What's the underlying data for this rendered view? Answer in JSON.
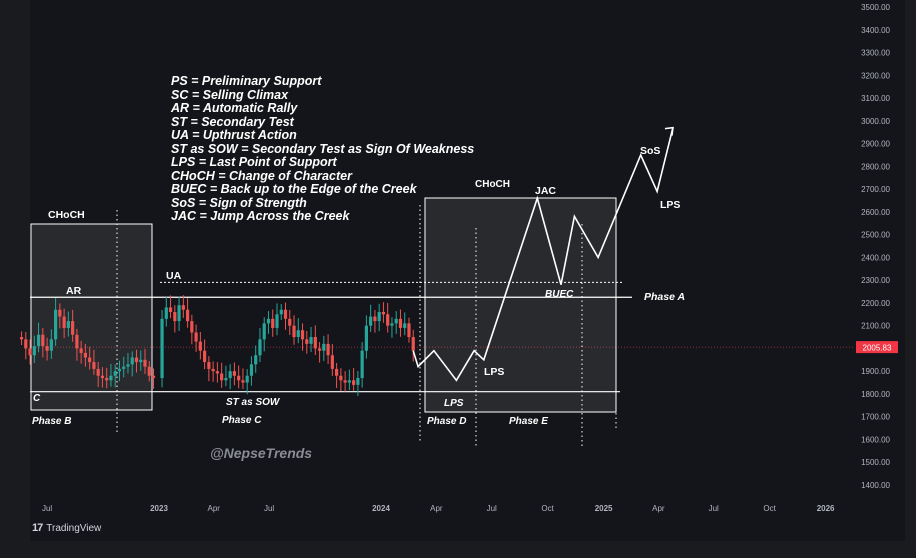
{
  "watermark": "@NepseTrends",
  "branding": "TradingView",
  "current_price_label": "2005.83",
  "legend": [
    "PS = Preliminary Support",
    "SC = Selling Climax",
    "AR = Automatic Rally",
    "ST = Secondary Test",
    "UA = Upthrust Action",
    "ST as SOW = Secondary Test as Sign Of Weakness",
    "LPS = Last Point of Support",
    "CHoCH = Change of Character",
    "BUEC = Back up to the Edge of the Creek",
    "SoS = Sign of Strength",
    "JAC = Jump Across the Creek"
  ],
  "chart_data": {
    "type": "candlestick",
    "title": "",
    "ylabel": "",
    "xlabel": "",
    "ylim": [
      1400,
      3500
    ],
    "y_ticks": [
      "3500.00",
      "3400.00",
      "3300.00",
      "3200.00",
      "3100.00",
      "3000.00",
      "2900.00",
      "2800.00",
      "2700.00",
      "2600.00",
      "2500.00",
      "2400.00",
      "2300.00",
      "2200.00",
      "2100.00",
      "2000.00",
      "1900.00",
      "1800.00",
      "1700.00",
      "1600.00",
      "1500.00",
      "1400.00"
    ],
    "x_ticks": [
      "Jul",
      "2023",
      "Apr",
      "Jul",
      "2024",
      "Apr",
      "Jul",
      "Oct",
      "2025",
      "Apr",
      "Jul",
      "Oct",
      "2026"
    ],
    "x_tick_dates": [
      "2022-07-01",
      "2023-01-01",
      "2023-04-01",
      "2023-07-01",
      "2024-01-01",
      "2024-04-01",
      "2024-07-01",
      "2024-10-01",
      "2025-01-01",
      "2025-04-01",
      "2025-07-01",
      "2025-10-01",
      "2026-01-01"
    ],
    "last_price": 2005.83,
    "creek_level": 2225,
    "resistance_dotted_level": 2290,
    "support_level": 1810,
    "candles": [
      {
        "x": "2022-05-20",
        "c": 2040
      },
      {
        "x": "2022-05-27",
        "c": 2000
      },
      {
        "x": "2022-06-03",
        "c": 1970
      },
      {
        "x": "2022-06-10",
        "c": 2010
      },
      {
        "x": "2022-06-17",
        "c": 2060
      },
      {
        "x": "2022-06-24",
        "c": 2010
      },
      {
        "x": "2022-07-01",
        "c": 1990
      },
      {
        "x": "2022-07-08",
        "c": 2040
      },
      {
        "x": "2022-07-15",
        "c": 2170
      },
      {
        "x": "2022-07-22",
        "c": 2140
      },
      {
        "x": "2022-07-29",
        "c": 2090
      },
      {
        "x": "2022-08-05",
        "c": 2120
      },
      {
        "x": "2022-08-12",
        "c": 2060
      },
      {
        "x": "2022-08-19",
        "c": 2000
      },
      {
        "x": "2022-08-26",
        "c": 1980
      },
      {
        "x": "2022-09-02",
        "c": 1960
      },
      {
        "x": "2022-09-09",
        "c": 1940
      },
      {
        "x": "2022-09-16",
        "c": 1910
      },
      {
        "x": "2022-09-23",
        "c": 1880
      },
      {
        "x": "2022-09-30",
        "c": 1870
      },
      {
        "x": "2022-10-07",
        "c": 1860
      },
      {
        "x": "2022-10-14",
        "c": 1880
      },
      {
        "x": "2022-10-21",
        "c": 1900
      },
      {
        "x": "2022-10-28",
        "c": 1910
      },
      {
        "x": "2022-11-04",
        "c": 1920
      },
      {
        "x": "2022-11-11",
        "c": 1930
      },
      {
        "x": "2022-11-18",
        "c": 1960
      },
      {
        "x": "2022-11-25",
        "c": 1940
      },
      {
        "x": "2022-12-02",
        "c": 1950
      },
      {
        "x": "2022-12-09",
        "c": 1920
      },
      {
        "x": "2022-12-16",
        "c": 1880
      },
      {
        "x": "2022-12-23",
        "c": 1870
      },
      {
        "x": "2023-01-06",
        "c": 2130
      },
      {
        "x": "2023-01-13",
        "c": 2180
      },
      {
        "x": "2023-01-20",
        "c": 2160
      },
      {
        "x": "2023-01-27",
        "c": 2120
      },
      {
        "x": "2023-02-03",
        "c": 2190
      },
      {
        "x": "2023-02-10",
        "c": 2170
      },
      {
        "x": "2023-02-17",
        "c": 2120
      },
      {
        "x": "2023-02-24",
        "c": 2070
      },
      {
        "x": "2023-03-03",
        "c": 2030
      },
      {
        "x": "2023-03-10",
        "c": 1990
      },
      {
        "x": "2023-03-17",
        "c": 1940
      },
      {
        "x": "2023-03-24",
        "c": 1910
      },
      {
        "x": "2023-03-31",
        "c": 1900
      },
      {
        "x": "2023-04-07",
        "c": 1890
      },
      {
        "x": "2023-04-14",
        "c": 1860
      },
      {
        "x": "2023-04-21",
        "c": 1870
      },
      {
        "x": "2023-04-28",
        "c": 1900
      },
      {
        "x": "2023-05-05",
        "c": 1880
      },
      {
        "x": "2023-05-12",
        "c": 1860
      },
      {
        "x": "2023-05-19",
        "c": 1850
      },
      {
        "x": "2023-05-26",
        "c": 1880
      },
      {
        "x": "2023-06-02",
        "c": 1930
      },
      {
        "x": "2023-06-09",
        "c": 1970
      },
      {
        "x": "2023-06-16",
        "c": 2040
      },
      {
        "x": "2023-06-23",
        "c": 2110
      },
      {
        "x": "2023-06-30",
        "c": 2130
      },
      {
        "x": "2023-07-07",
        "c": 2090
      },
      {
        "x": "2023-07-14",
        "c": 2150
      },
      {
        "x": "2023-07-21",
        "c": 2170
      },
      {
        "x": "2023-07-28",
        "c": 2130
      },
      {
        "x": "2023-08-04",
        "c": 2100
      },
      {
        "x": "2023-08-11",
        "c": 2050
      },
      {
        "x": "2023-08-18",
        "c": 2080
      },
      {
        "x": "2023-08-25",
        "c": 2040
      },
      {
        "x": "2023-09-01",
        "c": 2020
      },
      {
        "x": "2023-09-08",
        "c": 2050
      },
      {
        "x": "2023-09-15",
        "c": 2000
      },
      {
        "x": "2023-09-22",
        "c": 1990
      },
      {
        "x": "2023-09-29",
        "c": 2020
      },
      {
        "x": "2023-10-06",
        "c": 1970
      },
      {
        "x": "2023-10-13",
        "c": 1910
      },
      {
        "x": "2023-10-20",
        "c": 1880
      },
      {
        "x": "2023-10-27",
        "c": 1860
      },
      {
        "x": "2023-11-03",
        "c": 1850
      },
      {
        "x": "2023-11-10",
        "c": 1860
      },
      {
        "x": "2023-11-17",
        "c": 1840
      },
      {
        "x": "2023-11-24",
        "c": 1870
      },
      {
        "x": "2023-12-01",
        "c": 1990
      },
      {
        "x": "2023-12-08",
        "c": 2100
      },
      {
        "x": "2023-12-15",
        "c": 2140
      },
      {
        "x": "2023-12-22",
        "c": 2120
      },
      {
        "x": "2023-12-29",
        "c": 2160
      },
      {
        "x": "2024-01-05",
        "c": 2150
      },
      {
        "x": "2024-01-12",
        "c": 2100
      },
      {
        "x": "2024-01-19",
        "c": 2110
      },
      {
        "x": "2024-01-26",
        "c": 2130
      },
      {
        "x": "2024-02-02",
        "c": 2090
      },
      {
        "x": "2024-02-09",
        "c": 2110
      },
      {
        "x": "2024-02-16",
        "c": 2050
      },
      {
        "x": "2024-02-23",
        "c": 1990
      }
    ],
    "projection_path": [
      {
        "x": "2024-02-23",
        "y": 1990
      },
      {
        "x": "2024-03-02",
        "y": 1920
      },
      {
        "x": "2024-03-28",
        "y": 1990
      },
      {
        "x": "2024-05-04",
        "y": 1860
      },
      {
        "x": "2024-06-02",
        "y": 1990
      },
      {
        "x": "2024-06-18",
        "y": 1950
      },
      {
        "x": "2024-09-14",
        "y": 2660
      },
      {
        "x": "2024-10-23",
        "y": 2280
      },
      {
        "x": "2024-11-14",
        "y": 2580
      },
      {
        "x": "2024-12-23",
        "y": 2400
      },
      {
        "x": "2025-03-03",
        "y": 2850
      },
      {
        "x": "2025-03-30",
        "y": 2690
      },
      {
        "x": "2025-04-25",
        "y": 2970
      }
    ],
    "annotations": [
      "PS",
      "SC",
      "AR",
      "ST",
      "UA",
      "ST as SOW",
      "LPS",
      "CHoCH",
      "BUEC",
      "SoS",
      "JAC",
      "Creek",
      "C",
      "Phase A",
      "Phase B",
      "Phase C",
      "Phase D",
      "Phase E"
    ],
    "grid": false,
    "legend_position": "top-left"
  }
}
